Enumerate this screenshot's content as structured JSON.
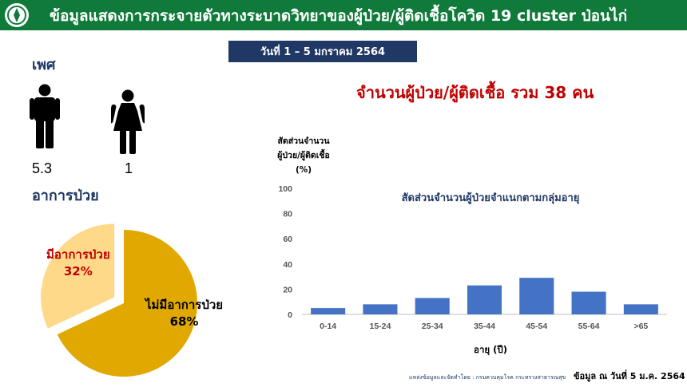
{
  "header": {
    "title": "ข้อมูลแสดงการกระจายตัวทางระบาดวิทยาของผู้ป่วย/ผู้ติดเชื้อโควิด 19 cluster ป่อนไก่",
    "color": "#0f7a3a"
  },
  "date_range": "วันที่ 1 – 5 มกราคม 2564",
  "gender": {
    "title": "เพศ",
    "male_count": "5.3",
    "female_count": "1",
    "male_icon": "male-person-icon",
    "female_icon": "female-person-icon"
  },
  "total_cases": "จำนวนผู้ป่วย/ผู้ติดเชื้อ รวม 38 คน",
  "symptoms": {
    "title": "อาการป่วย",
    "symptomatic_label": "มีอาการป่วย",
    "symptomatic_pct": "32%",
    "asymptomatic_label": "ไม่มีอาการป่วย",
    "asymptomatic_pct": "68%"
  },
  "chart_data": [
    {
      "type": "pie",
      "slices": [
        {
          "label": "มีอาการป่วย",
          "value": 32,
          "color": "#ffd98a"
        },
        {
          "label": "ไม่มีอาการป่วย",
          "value": 68,
          "color": "#e0a800"
        }
      ]
    },
    {
      "type": "bar",
      "title": "สัดส่วนจำนวนผู้ป่วยจำแนกตามกลุ่มอายุ",
      "ylabel_lines": [
        "สัดส่วนจำนวน",
        "ผู้ป่วย/ผู้ติดเชื้อ",
        "(%)"
      ],
      "xlabel": "อายุ (ปี)",
      "categories": [
        "0-14",
        "15-24",
        "25-34",
        "35-44",
        "45-54",
        "55-64",
        ">65"
      ],
      "values": [
        5,
        8,
        13,
        23,
        29,
        18,
        8
      ],
      "ylim": [
        0,
        100
      ],
      "yticks": [
        0,
        20,
        40,
        60,
        80,
        100
      ],
      "bar_color": "#4472c4"
    }
  ],
  "footer": {
    "source": "แหล่งข้อมูลและจัดทำโดย : กรมควบคุมโรค กระทรวงสาธารณสุข",
    "data_date": "ข้อมูล ณ วันที่ 5 ม.ค. 2564"
  }
}
